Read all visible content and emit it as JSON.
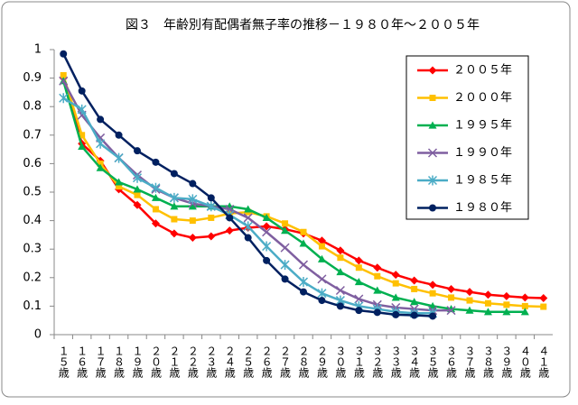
{
  "chart_data": {
    "type": "line",
    "title": "図３　年齢別有配偶者無子率の推移－１９８０年～２００５年",
    "categories": [
      "１５歳",
      "１６歳",
      "１７歳",
      "１８歳",
      "１９歳",
      "２０歳",
      "２１歳",
      "２２歳",
      "２３歳",
      "２４歳",
      "２５歳",
      "２６歳",
      "２７歳",
      "２８歳",
      "２９歳",
      "３０歳",
      "３１歳",
      "３２歳",
      "３３歳",
      "３４歳",
      "３５歳",
      "３６歳",
      "３７歳",
      "３８歳",
      "３９歳",
      "４０歳",
      "４１歳"
    ],
    "series": [
      {
        "name": "２００５年",
        "color": "#ff0000",
        "marker": "diamond",
        "values": [
          0.9,
          0.67,
          0.61,
          0.51,
          0.455,
          0.39,
          0.355,
          0.34,
          0.345,
          0.365,
          0.375,
          0.38,
          0.37,
          0.355,
          0.33,
          0.295,
          0.26,
          0.235,
          0.21,
          0.19,
          0.175,
          0.16,
          0.15,
          0.14,
          0.135,
          0.13,
          0.128
        ]
      },
      {
        "name": "２０００年",
        "color": "#ffc000",
        "marker": "square",
        "values": [
          0.91,
          0.7,
          0.6,
          0.52,
          0.49,
          0.44,
          0.405,
          0.4,
          0.41,
          0.425,
          0.43,
          0.415,
          0.39,
          0.36,
          0.31,
          0.27,
          0.235,
          0.205,
          0.18,
          0.16,
          0.145,
          0.13,
          0.12,
          0.11,
          0.105,
          0.1,
          0.098
        ]
      },
      {
        "name": "１９９５年",
        "color": "#00b050",
        "marker": "triangle",
        "values": [
          0.89,
          0.66,
          0.585,
          0.535,
          0.51,
          0.48,
          0.45,
          0.45,
          0.45,
          0.45,
          0.44,
          0.41,
          0.365,
          0.32,
          0.265,
          0.22,
          0.185,
          0.155,
          0.13,
          0.115,
          0.1,
          0.09,
          0.085,
          0.08,
          0.08,
          0.08,
          null
        ]
      },
      {
        "name": "１９９０年",
        "color": "#7f5fa0",
        "marker": "x",
        "values": [
          0.89,
          0.77,
          0.69,
          0.62,
          0.56,
          0.51,
          0.48,
          0.46,
          0.45,
          0.44,
          0.41,
          0.36,
          0.305,
          0.245,
          0.195,
          0.155,
          0.125,
          0.105,
          0.095,
          0.09,
          0.085,
          0.085,
          null,
          null,
          null,
          null,
          null
        ]
      },
      {
        "name": "１９８５年",
        "color": "#4bacc6",
        "marker": "star",
        "values": [
          0.83,
          0.79,
          0.67,
          0.62,
          0.55,
          0.515,
          0.48,
          0.475,
          0.45,
          0.42,
          0.38,
          0.31,
          0.245,
          0.185,
          0.145,
          0.12,
          0.1,
          0.09,
          0.08,
          0.075,
          0.075,
          null,
          null,
          null,
          null,
          null,
          null
        ]
      },
      {
        "name": "１９８０年",
        "color": "#002060",
        "marker": "circle",
        "values": [
          0.985,
          0.855,
          0.755,
          0.7,
          0.645,
          0.605,
          0.565,
          0.53,
          0.48,
          0.41,
          0.34,
          0.26,
          0.195,
          0.15,
          0.12,
          0.1,
          0.085,
          0.078,
          0.07,
          0.068,
          0.065,
          null,
          null,
          null,
          null,
          null,
          null
        ]
      }
    ],
    "ylim": [
      0,
      1
    ],
    "yticks": [
      0,
      0.1,
      0.2,
      0.3,
      0.4,
      0.5,
      0.6,
      0.7,
      0.8,
      0.9,
      1
    ],
    "grid": false,
    "legend": "upper-right"
  }
}
